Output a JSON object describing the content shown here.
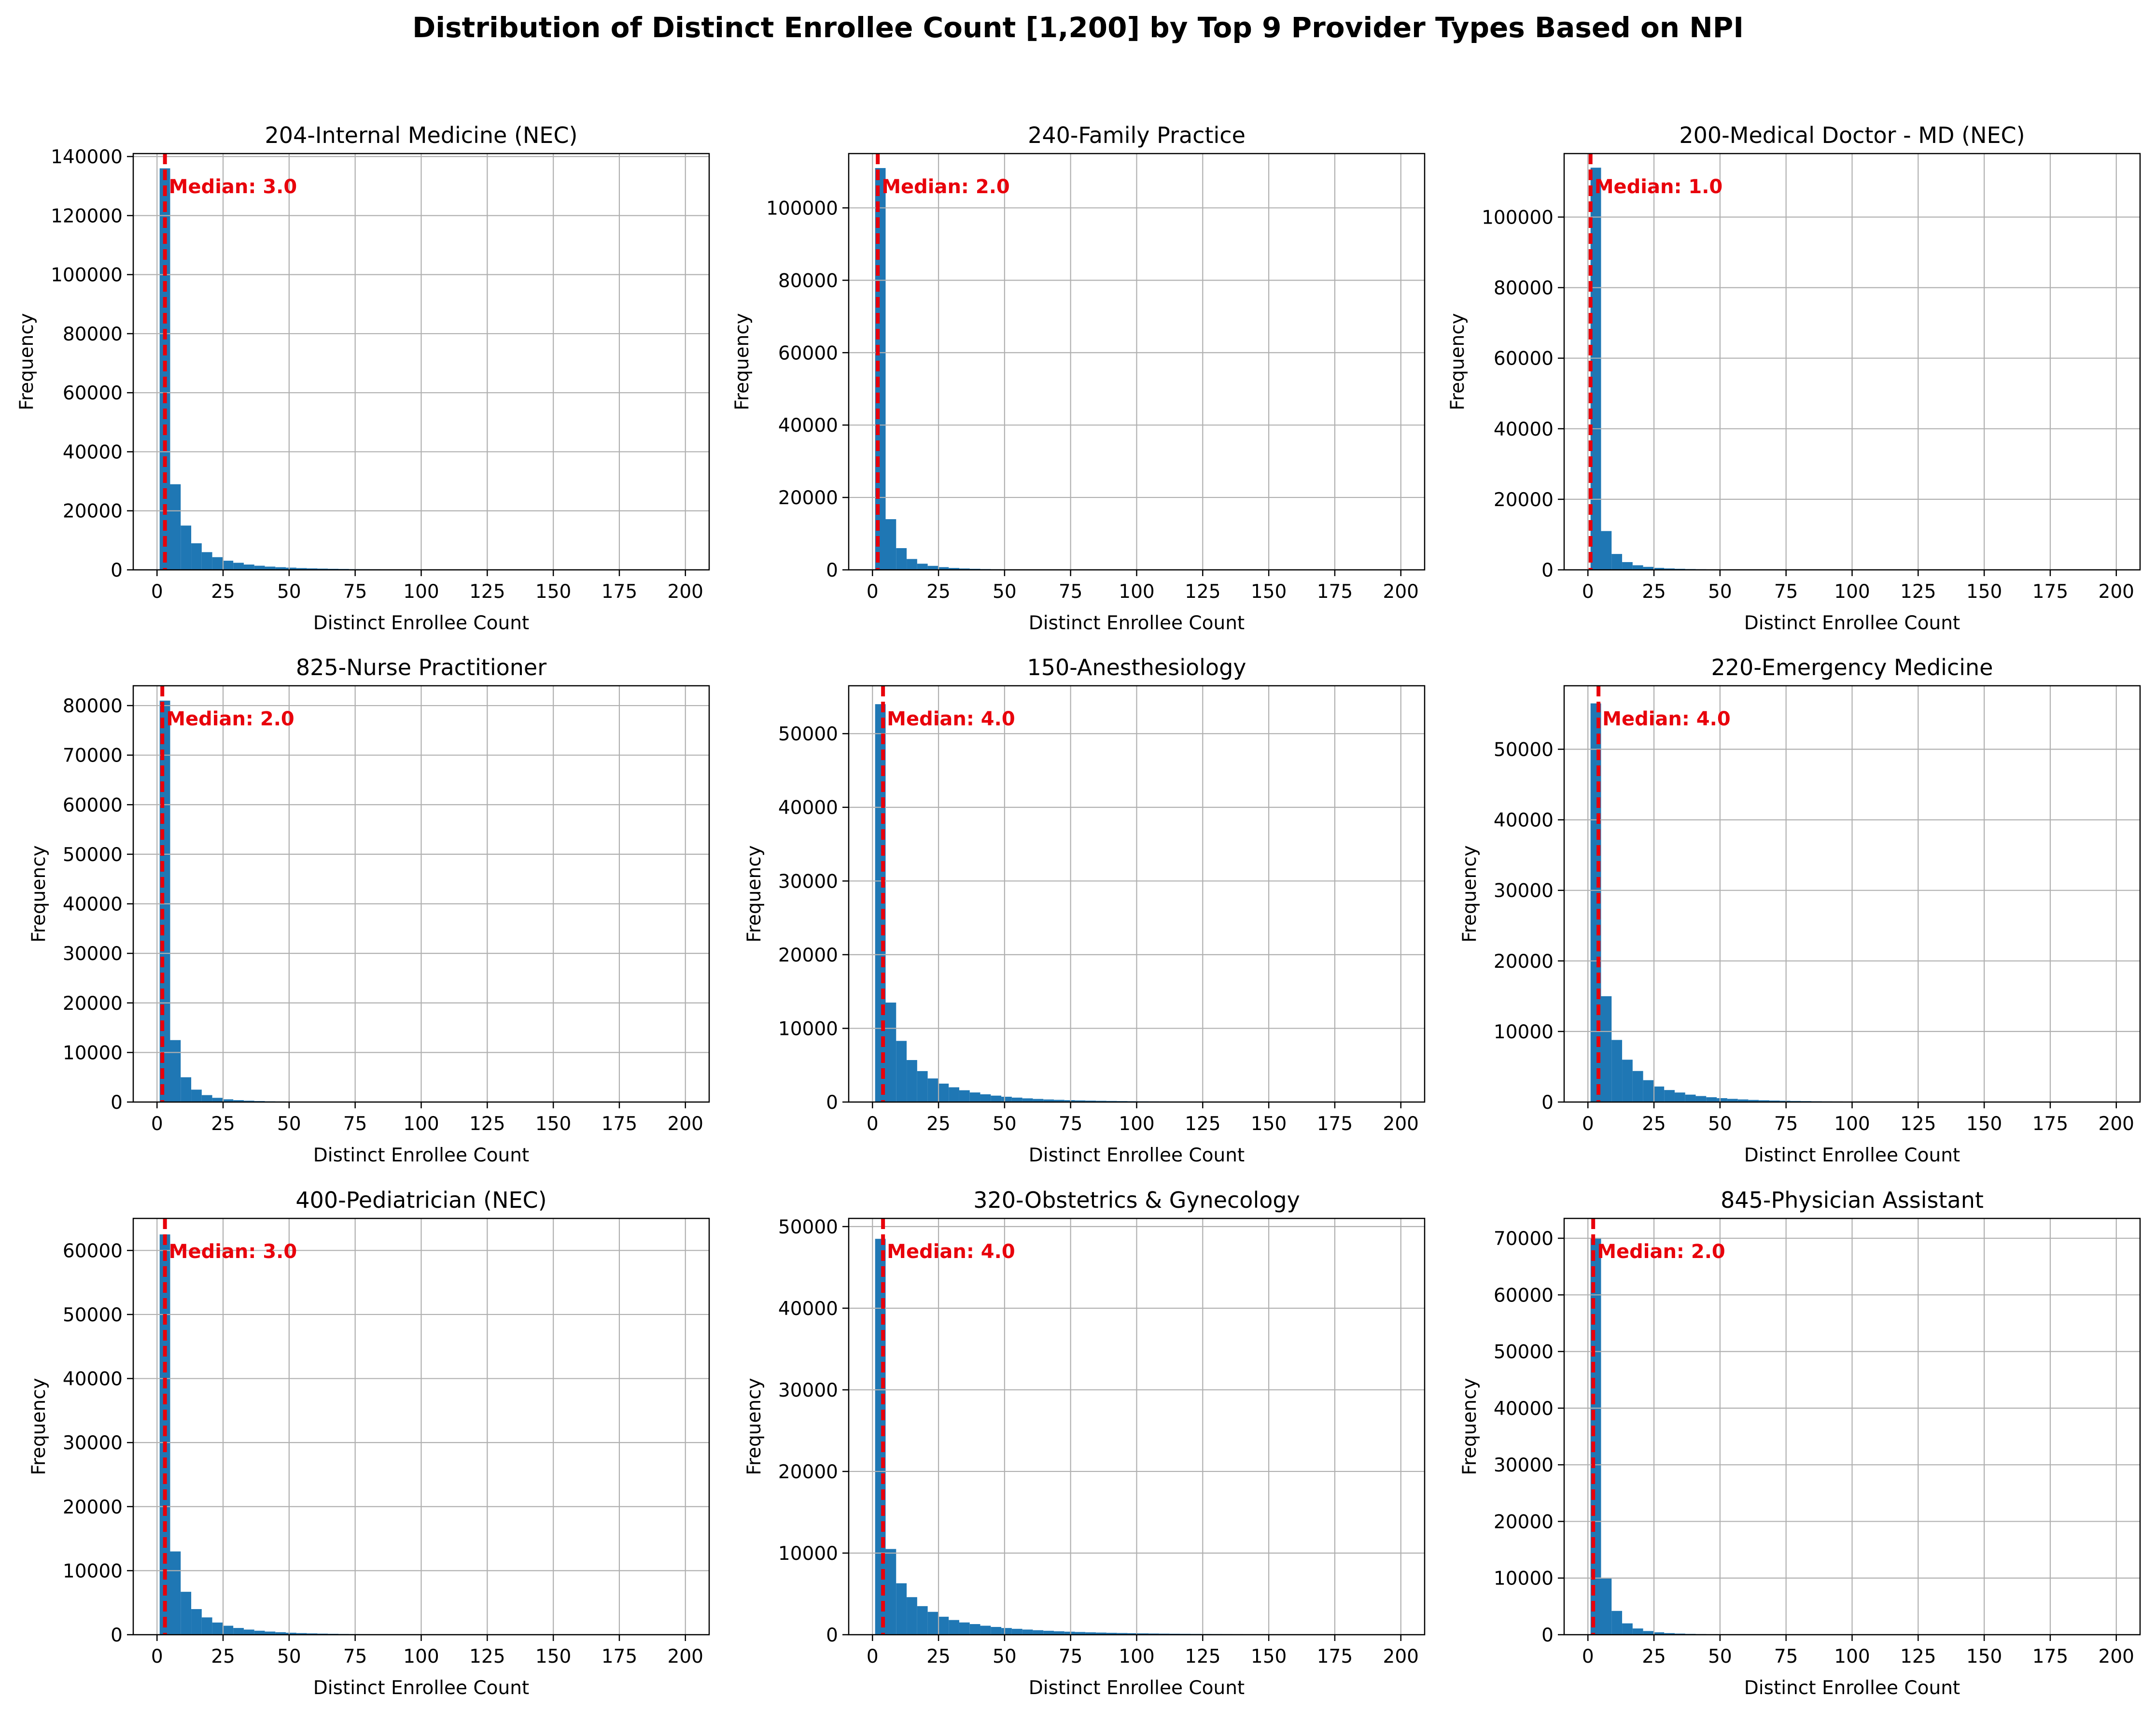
{
  "figure": {
    "title": "Distribution of Distinct Enrollee Count [1,200] by Top 9 Provider Types Based on NPI"
  },
  "colors": {
    "bar": "#1f77b4",
    "median": "#e8000b",
    "grid": "#b0b0b0",
    "axis": "#000000"
  },
  "chart_data": [
    {
      "type": "bar",
      "title": "204-Internal Medicine (NEC)",
      "xlabel": "Distinct Enrollee Count",
      "ylabel": "Frequency",
      "xlim": [
        -9,
        209
      ],
      "ylim": [
        0,
        141000
      ],
      "grid": true,
      "x_ticks": [
        0,
        25,
        50,
        75,
        100,
        125,
        150,
        175,
        200
      ],
      "y_ticks": [
        0,
        20000,
        40000,
        60000,
        80000,
        100000,
        120000,
        140000
      ],
      "bin_start": 1,
      "bin_width": 3.98,
      "values": [
        136000,
        29000,
        15000,
        9000,
        6000,
        4300,
        3100,
        2400,
        1800,
        1400,
        1100,
        900,
        750,
        600,
        500,
        420,
        350,
        300,
        250,
        220,
        190,
        160,
        140,
        120,
        100,
        90,
        80,
        70,
        60,
        55,
        50,
        45,
        40,
        35,
        30,
        28,
        26,
        24,
        22,
        20,
        18,
        16,
        15,
        14,
        13,
        12,
        11,
        10,
        9,
        8
      ],
      "median": 3.0,
      "median_label": "Median: 3.0"
    },
    {
      "type": "bar",
      "title": "240-Family Practice",
      "xlabel": "Distinct Enrollee Count",
      "ylabel": "Frequency",
      "xlim": [
        -9,
        209
      ],
      "ylim": [
        0,
        115000
      ],
      "grid": true,
      "x_ticks": [
        0,
        25,
        50,
        75,
        100,
        125,
        150,
        175,
        200
      ],
      "y_ticks": [
        0,
        20000,
        40000,
        60000,
        80000,
        100000
      ],
      "bin_start": 1,
      "bin_width": 3.98,
      "values": [
        111000,
        14000,
        6000,
        3000,
        1700,
        1100,
        750,
        520,
        380,
        290,
        220,
        170,
        140,
        110,
        90,
        75,
        60,
        50,
        42,
        36,
        30,
        26,
        22,
        19,
        16,
        14,
        12,
        11,
        10,
        9,
        8,
        7,
        6,
        6,
        5,
        5,
        4,
        4,
        4,
        3,
        3,
        3,
        3,
        2,
        2,
        2,
        2,
        2,
        2,
        2
      ],
      "median": 2.0,
      "median_label": "Median: 2.0"
    },
    {
      "type": "bar",
      "title": "200-Medical Doctor - MD (NEC)",
      "xlabel": "Distinct Enrollee Count",
      "ylabel": "Frequency",
      "xlim": [
        -9,
        209
      ],
      "ylim": [
        0,
        118000
      ],
      "grid": true,
      "x_ticks": [
        0,
        25,
        50,
        75,
        100,
        125,
        150,
        175,
        200
      ],
      "y_ticks": [
        0,
        20000,
        40000,
        60000,
        80000,
        100000
      ],
      "bin_start": 1,
      "bin_width": 3.98,
      "values": [
        114000,
        11000,
        4500,
        2200,
        1300,
        850,
        560,
        400,
        300,
        230,
        180,
        140,
        110,
        90,
        75,
        60,
        50,
        42,
        35,
        30,
        26,
        22,
        19,
        16,
        14,
        12,
        10,
        9,
        8,
        7,
        6,
        6,
        5,
        5,
        4,
        4,
        4,
        3,
        3,
        3,
        3,
        2,
        2,
        2,
        2,
        2,
        2,
        2,
        2,
        2
      ],
      "median": 1.0,
      "median_label": "Median: 1.0"
    },
    {
      "type": "bar",
      "title": "825-Nurse Practitioner",
      "xlabel": "Distinct Enrollee Count",
      "ylabel": "Frequency",
      "xlim": [
        -9,
        209
      ],
      "ylim": [
        0,
        84000
      ],
      "grid": true,
      "x_ticks": [
        0,
        25,
        50,
        75,
        100,
        125,
        150,
        175,
        200
      ],
      "y_ticks": [
        0,
        10000,
        20000,
        30000,
        40000,
        50000,
        60000,
        70000,
        80000
      ],
      "bin_start": 1,
      "bin_width": 3.98,
      "values": [
        81000,
        12500,
        5000,
        2500,
        1400,
        850,
        550,
        380,
        270,
        200,
        150,
        115,
        90,
        72,
        58,
        47,
        38,
        32,
        27,
        23,
        20,
        17,
        15,
        13,
        11,
        10,
        9,
        8,
        7,
        6,
        6,
        5,
        5,
        4,
        4,
        4,
        3,
        3,
        3,
        3,
        2,
        2,
        2,
        2,
        2,
        2,
        2,
        2,
        2,
        2
      ],
      "median": 2.0,
      "median_label": "Median: 2.0"
    },
    {
      "type": "bar",
      "title": "150-Anesthesiology",
      "xlabel": "Distinct Enrollee Count",
      "ylabel": "Frequency",
      "xlim": [
        -9,
        209
      ],
      "ylim": [
        0,
        56500
      ],
      "grid": true,
      "x_ticks": [
        0,
        25,
        50,
        75,
        100,
        125,
        150,
        175,
        200
      ],
      "y_ticks": [
        0,
        10000,
        20000,
        30000,
        40000,
        50000
      ],
      "bin_start": 1,
      "bin_width": 3.98,
      "values": [
        54000,
        13500,
        8300,
        5700,
        4200,
        3200,
        2500,
        2000,
        1600,
        1300,
        1050,
        870,
        720,
        600,
        500,
        420,
        350,
        300,
        255,
        220,
        190,
        165,
        145,
        128,
        112,
        100,
        90,
        80,
        72,
        65,
        58,
        52,
        47,
        43,
        39,
        35,
        32,
        29,
        27,
        25,
        23,
        21,
        19,
        18,
        17,
        16,
        15,
        14,
        13,
        12
      ],
      "median": 4.0,
      "median_label": "Median: 4.0"
    },
    {
      "type": "bar",
      "title": "220-Emergency Medicine",
      "xlabel": "Distinct Enrollee Count",
      "ylabel": "Frequency",
      "xlim": [
        -9,
        209
      ],
      "ylim": [
        0,
        59000
      ],
      "grid": true,
      "x_ticks": [
        0,
        25,
        50,
        75,
        100,
        125,
        150,
        175,
        200
      ],
      "y_ticks": [
        0,
        10000,
        20000,
        30000,
        40000,
        50000
      ],
      "bin_start": 1,
      "bin_width": 3.98,
      "values": [
        56500,
        15000,
        8800,
        6000,
        4400,
        3100,
        2200,
        1700,
        1350,
        1050,
        850,
        680,
        550,
        450,
        370,
        300,
        250,
        210,
        180,
        150,
        130,
        110,
        95,
        82,
        70,
        61,
        53,
        46,
        40,
        35,
        31,
        27,
        24,
        21,
        19,
        17,
        15,
        13,
        12,
        11,
        10,
        9,
        8,
        7,
        7,
        6,
        6,
        5,
        5,
        5
      ],
      "median": 4.0,
      "median_label": "Median: 4.0"
    },
    {
      "type": "bar",
      "title": "400-Pediatrician (NEC)",
      "xlabel": "Distinct Enrollee Count",
      "ylabel": "Frequency",
      "xlim": [
        -9,
        209
      ],
      "ylim": [
        0,
        65000
      ],
      "grid": true,
      "x_ticks": [
        0,
        25,
        50,
        75,
        100,
        125,
        150,
        175,
        200
      ],
      "y_ticks": [
        0,
        10000,
        20000,
        30000,
        40000,
        50000,
        60000
      ],
      "bin_start": 1,
      "bin_width": 3.98,
      "values": [
        62500,
        13000,
        6700,
        4000,
        2700,
        1900,
        1400,
        1050,
        800,
        620,
        490,
        390,
        310,
        250,
        205,
        170,
        140,
        118,
        100,
        85,
        72,
        62,
        53,
        46,
        40,
        35,
        30,
        26,
        23,
        20,
        18,
        16,
        14,
        12,
        11,
        10,
        9,
        8,
        7,
        6,
        6,
        5,
        5,
        4,
        4,
        4,
        3,
        3,
        3,
        3
      ],
      "median": 3.0,
      "median_label": "Median: 3.0"
    },
    {
      "type": "bar",
      "title": "320-Obstetrics & Gynecology",
      "xlabel": "Distinct Enrollee Count",
      "ylabel": "Frequency",
      "xlim": [
        -9,
        209
      ],
      "ylim": [
        0,
        51000
      ],
      "grid": true,
      "x_ticks": [
        0,
        25,
        50,
        75,
        100,
        125,
        150,
        175,
        200
      ],
      "y_ticks": [
        0,
        10000,
        20000,
        30000,
        40000,
        50000
      ],
      "bin_start": 1,
      "bin_width": 3.98,
      "values": [
        48500,
        10500,
        6300,
        4600,
        3500,
        2800,
        2200,
        1800,
        1500,
        1300,
        1100,
        950,
        820,
        720,
        630,
        550,
        480,
        420,
        370,
        330,
        290,
        260,
        230,
        205,
        185,
        165,
        148,
        133,
        120,
        108,
        97,
        88,
        79,
        71,
        64,
        58,
        52,
        47,
        43,
        39,
        35,
        32,
        29,
        26,
        24,
        22,
        20,
        18,
        16,
        15
      ],
      "median": 4.0,
      "median_label": "Median: 4.0"
    },
    {
      "type": "bar",
      "title": "845-Physician Assistant",
      "xlabel": "Distinct Enrollee Count",
      "ylabel": "Frequency",
      "xlim": [
        -9,
        209
      ],
      "ylim": [
        0,
        73500
      ],
      "grid": true,
      "x_ticks": [
        0,
        25,
        50,
        75,
        100,
        125,
        150,
        175,
        200
      ],
      "y_ticks": [
        0,
        10000,
        20000,
        30000,
        40000,
        50000,
        60000,
        70000
      ],
      "bin_start": 1,
      "bin_width": 3.98,
      "values": [
        70000,
        10000,
        4200,
        2000,
        1100,
        650,
        420,
        280,
        200,
        145,
        108,
        82,
        64,
        50,
        40,
        32,
        26,
        22,
        18,
        15,
        13,
        11,
        9,
        8,
        7,
        6,
        5,
        5,
        4,
        4,
        3,
        3,
        3,
        2,
        2,
        2,
        2,
        2,
        2,
        2,
        1,
        1,
        1,
        1,
        1,
        1,
        1,
        1,
        1,
        1
      ],
      "median": 2.0,
      "median_label": "Median: 2.0"
    }
  ]
}
